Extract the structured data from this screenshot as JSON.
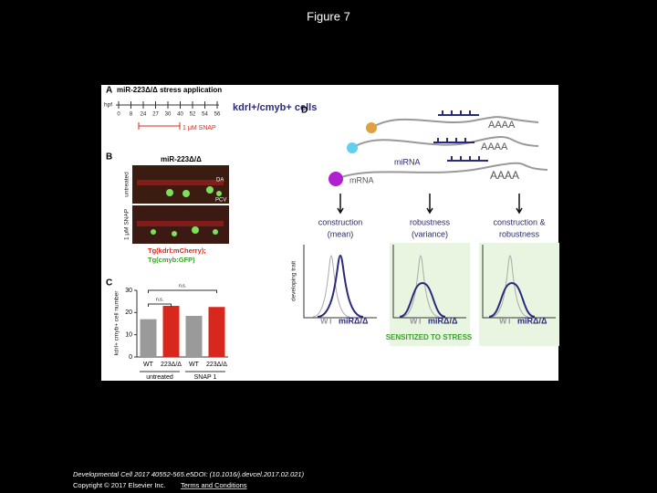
{
  "header": {
    "title": "Figure 7"
  },
  "figure": {
    "panel_a": {
      "label": "A",
      "title": "miR-223Δ/Δ stress application",
      "axis": "hpf",
      "ticks": [
        "0",
        "8",
        "24",
        "27",
        "30",
        "40",
        "52",
        "54",
        "56"
      ],
      "cells": "kdrl+/cmyb+ cells",
      "treatment": "1 μM SNAP"
    },
    "panel_b": {
      "label": "B",
      "title": "miR-223Δ/Δ",
      "rows": [
        "untreated",
        "1 μM SNAP"
      ],
      "vessels": [
        "DA",
        "PCV"
      ],
      "legend": [
        "Tg(kdrl:mCherry);",
        "Tg(cmyb:GFP)"
      ]
    },
    "panel_d": {
      "label": "D",
      "tail": [
        "AAAA",
        "AAAA",
        "AAAA"
      ],
      "mirna": "miRNA",
      "mrna": "mRNA",
      "columns": [
        [
          "construction",
          "(mean)"
        ],
        [
          "robustness",
          "(variance)"
        ],
        [
          "construction &",
          "robustness"
        ]
      ],
      "y_label": "developing trait",
      "wt": "WT",
      "mut": "miRΔ/Δ",
      "note": "SENSITIZED TO STRESS"
    }
  },
  "chart_data": {
    "type": "bar",
    "label": "C",
    "y_label": "kdrl+ cmyb+ cell number",
    "categories": [
      "WT",
      "223Δ/Δ",
      "WT",
      "223Δ/Δ"
    ],
    "groups": [
      "untreated",
      "SNAP 1"
    ],
    "significance": [
      "n.s.",
      "n.s."
    ],
    "values": [
      17,
      23,
      18.5,
      22.5
    ],
    "colors": [
      "#9a9a9a",
      "#d8281e",
      "#9a9a9a",
      "#d8281e"
    ],
    "ylim": [
      0,
      30
    ],
    "yticks": [
      0,
      10,
      20,
      30
    ]
  },
  "footer": {
    "citation": "Developmental Cell 2017 40552-565.e5DOI: (10.1016/j.devcel.2017.02.021)",
    "copyright": "Copyright © 2017 Elsevier Inc.",
    "link": "Terms and Conditions"
  }
}
